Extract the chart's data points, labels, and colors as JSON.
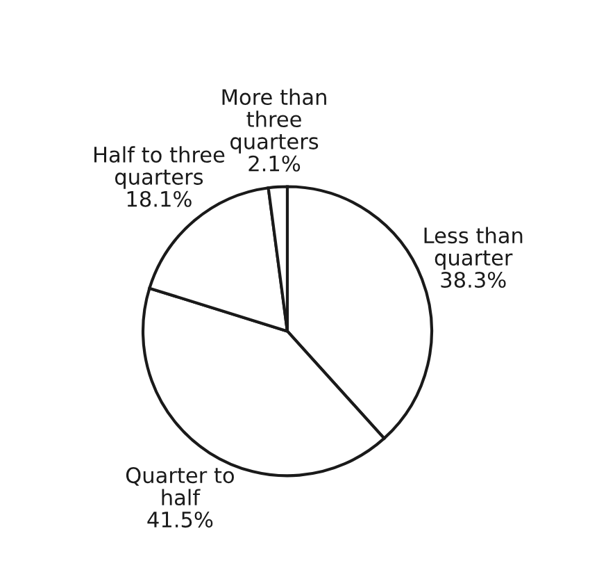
{
  "chart_data": {
    "type": "pie",
    "categories": [
      "Less than\nquarter",
      "Quarter to\nhalf",
      "Half to three\nquarters",
      "More than\nthree\nquarters"
    ],
    "values": [
      38.3,
      41.5,
      18.1,
      2.1
    ],
    "value_labels": [
      "38.3%",
      "41.5%",
      "18.1%",
      "2.1%"
    ],
    "colors": [
      "#ffffff",
      "#ffffff",
      "#ffffff",
      "#ffffff"
    ]
  }
}
